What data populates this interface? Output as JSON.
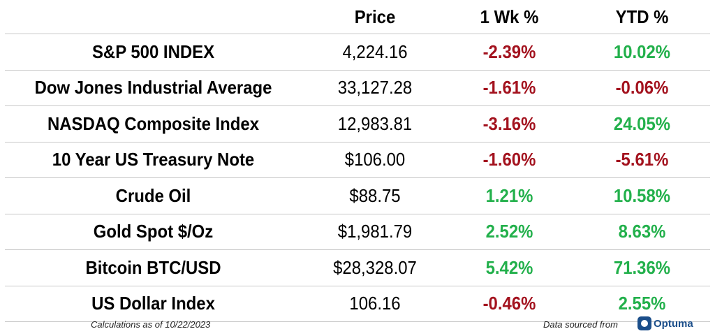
{
  "colors": {
    "positive": "#22b04b",
    "negative": "#a3121e"
  },
  "header": {
    "price": "Price",
    "wk": "1 Wk %",
    "ytd": "YTD %"
  },
  "rows": [
    {
      "name": "S&P 500 INDEX",
      "price": "4,224.16",
      "wk": "-2.39%",
      "wk_dir": "negative",
      "ytd": "10.02%",
      "ytd_dir": "positive"
    },
    {
      "name": "Dow Jones Industrial Average",
      "price": "33,127.28",
      "wk": "-1.61%",
      "wk_dir": "negative",
      "ytd": "-0.06%",
      "ytd_dir": "negative"
    },
    {
      "name": "NASDAQ Composite Index",
      "price": "12,983.81",
      "wk": "-3.16%",
      "wk_dir": "negative",
      "ytd": "24.05%",
      "ytd_dir": "positive"
    },
    {
      "name": "10 Year US Treasury Note",
      "price": "$106.00",
      "wk": "-1.60%",
      "wk_dir": "negative",
      "ytd": "-5.61%",
      "ytd_dir": "negative"
    },
    {
      "name": "Crude Oil",
      "price": "$88.75",
      "wk": "1.21%",
      "wk_dir": "positive",
      "ytd": "10.58%",
      "ytd_dir": "positive"
    },
    {
      "name": "Gold Spot $/Oz",
      "price": "$1,981.79",
      "wk": "2.52%",
      "wk_dir": "positive",
      "ytd": "8.63%",
      "ytd_dir": "positive"
    },
    {
      "name": "Bitcoin BTC/USD",
      "price": "$28,328.07",
      "wk": "5.42%",
      "wk_dir": "positive",
      "ytd": "71.36%",
      "ytd_dir": "positive"
    },
    {
      "name": "US Dollar Index",
      "price": "106.16",
      "wk": "-0.46%",
      "wk_dir": "negative",
      "ytd": "2.55%",
      "ytd_dir": "positive"
    }
  ],
  "footer": {
    "calc_note": "Calculations as of 10/22/2023",
    "source_note": "Data sourced from",
    "logo_text": "Optuma"
  }
}
